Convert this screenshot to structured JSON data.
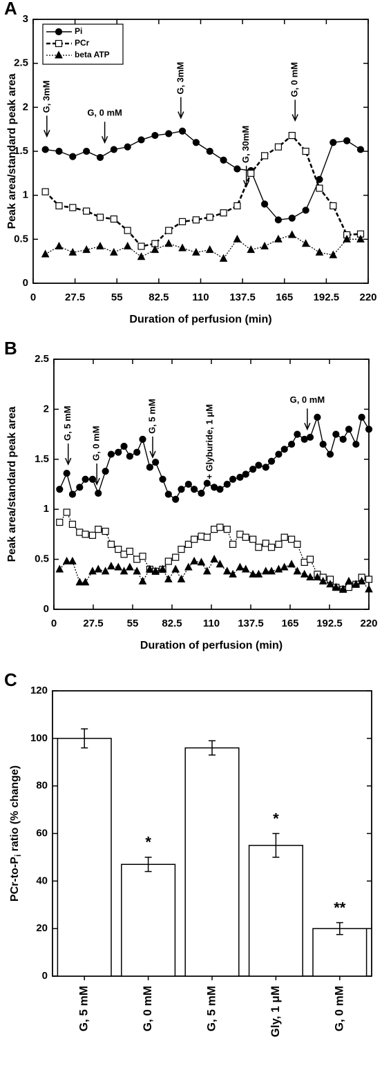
{
  "chart_data": [
    {
      "type": "line",
      "panel_label": "A",
      "xlabel": "Duration of perfusion (min)",
      "ylabel": "Peak area/standard peak area",
      "xlim": [
        0,
        220
      ],
      "xticks": [
        0,
        27.5,
        55,
        82.5,
        110,
        137.5,
        165,
        192.5,
        220
      ],
      "ylim": [
        0,
        3
      ],
      "yticks": [
        0,
        0.5,
        1,
        1.5,
        2,
        2.5,
        3
      ],
      "legend": "upper left",
      "x": [
        8,
        17,
        26,
        35,
        44,
        53,
        62,
        71,
        80,
        89,
        98,
        107,
        116,
        125,
        134,
        143,
        152,
        161,
        170,
        179,
        188,
        197,
        206,
        215
      ],
      "series": [
        {
          "name": "Pi",
          "color": "#000000",
          "marker": "circle",
          "filled": true,
          "linestyle": "solid",
          "values": [
            1.52,
            1.5,
            1.44,
            1.5,
            1.43,
            1.52,
            1.55,
            1.63,
            1.68,
            1.7,
            1.73,
            1.6,
            1.5,
            1.4,
            1.3,
            1.28,
            0.9,
            0.72,
            0.74,
            0.83,
            1.18,
            1.6,
            1.62,
            1.52
          ]
        },
        {
          "name": "PCr",
          "color": "#000000",
          "marker": "square",
          "filled": false,
          "linestyle": "dashed",
          "values": [
            1.04,
            0.88,
            0.86,
            0.82,
            0.75,
            0.73,
            0.6,
            0.42,
            0.45,
            0.6,
            0.7,
            0.72,
            0.75,
            0.8,
            0.88,
            1.25,
            1.45,
            1.55,
            1.68,
            1.5,
            1.08,
            0.88,
            0.55,
            0.56
          ]
        },
        {
          "name": "beta  ATP",
          "color": "#000000",
          "marker": "triangle",
          "filled": true,
          "linestyle": "dotted",
          "values": [
            0.33,
            0.42,
            0.35,
            0.38,
            0.42,
            0.35,
            0.42,
            0.3,
            0.38,
            0.45,
            0.4,
            0.35,
            0.38,
            0.28,
            0.5,
            0.38,
            0.42,
            0.5,
            0.55,
            0.45,
            0.35,
            0.32,
            0.5,
            0.5
          ]
        }
      ],
      "annotations": [
        {
          "text": "G, 3mM",
          "x": 9,
          "y": 1.67,
          "rotated": true,
          "arrow": true
        },
        {
          "text": "G, 0 mM",
          "x": 47,
          "y": 1.6,
          "rotated": false,
          "arrow": true
        },
        {
          "text": "G, 3mM",
          "x": 97,
          "y": 1.88,
          "rotated": true,
          "arrow": true
        },
        {
          "text": "G, 30mM",
          "x": 140,
          "y": 1.1,
          "rotated": true,
          "arrow": true
        },
        {
          "text": "G, 0 mM",
          "x": 172,
          "y": 1.85,
          "rotated": true,
          "arrow": true
        }
      ]
    },
    {
      "type": "line",
      "panel_label": "B",
      "xlabel": "Duration of perfusion (min)",
      "ylabel": "Peak area/standard peak area",
      "xlim": [
        0,
        220
      ],
      "xticks": [
        0,
        27.5,
        55,
        82.5,
        110,
        137.5,
        165,
        192.5,
        220
      ],
      "ylim": [
        0,
        2.5
      ],
      "yticks": [
        0,
        0.5,
        1,
        1.5,
        2,
        2.5
      ],
      "x": [
        4,
        9,
        13,
        18,
        22,
        27,
        31,
        36,
        40,
        45,
        49,
        53,
        58,
        62,
        67,
        71,
        76,
        80,
        85,
        89,
        94,
        98,
        103,
        107,
        112,
        116,
        121,
        125,
        130,
        134,
        139,
        143,
        148,
        152,
        157,
        161,
        166,
        170,
        175,
        179,
        184,
        188,
        193,
        197,
        202,
        206,
        211,
        215,
        220
      ],
      "series": [
        {
          "color": "#000000",
          "marker": "circle",
          "filled": true,
          "linestyle": "solid",
          "values": [
            1.2,
            1.36,
            1.15,
            1.22,
            1.3,
            1.3,
            1.16,
            1.38,
            1.55,
            1.57,
            1.63,
            1.53,
            1.57,
            1.7,
            1.42,
            1.47,
            1.3,
            1.15,
            1.1,
            1.2,
            1.25,
            1.2,
            1.16,
            1.26,
            1.22,
            1.2,
            1.25,
            1.3,
            1.32,
            1.35,
            1.4,
            1.44,
            1.42,
            1.48,
            1.55,
            1.6,
            1.65,
            1.75,
            1.7,
            1.72,
            1.92,
            1.65,
            1.55,
            1.75,
            1.7,
            1.8,
            1.65,
            1.92,
            1.8
          ]
        },
        {
          "color": "#000000",
          "marker": "square",
          "filled": false,
          "linestyle": "dotted",
          "values": [
            0.87,
            0.97,
            0.85,
            0.77,
            0.75,
            0.74,
            0.8,
            0.78,
            0.65,
            0.6,
            0.55,
            0.58,
            0.5,
            0.53,
            0.4,
            0.38,
            0.4,
            0.48,
            0.52,
            0.6,
            0.65,
            0.7,
            0.73,
            0.72,
            0.8,
            0.82,
            0.8,
            0.65,
            0.75,
            0.72,
            0.7,
            0.62,
            0.66,
            0.62,
            0.65,
            0.72,
            0.7,
            0.65,
            0.47,
            0.5,
            0.35,
            0.32,
            0.3,
            0.22,
            0.2,
            0.22,
            0.25,
            0.32,
            0.3
          ]
        },
        {
          "color": "#000000",
          "marker": "triangle",
          "filled": true,
          "linestyle": "dotted",
          "values": [
            0.4,
            0.48,
            0.48,
            0.27,
            0.27,
            0.38,
            0.4,
            0.38,
            0.43,
            0.42,
            0.38,
            0.42,
            0.38,
            0.28,
            0.4,
            0.38,
            0.4,
            0.3,
            0.4,
            0.3,
            0.42,
            0.48,
            0.47,
            0.38,
            0.5,
            0.45,
            0.38,
            0.35,
            0.42,
            0.4,
            0.35,
            0.35,
            0.38,
            0.38,
            0.4,
            0.42,
            0.45,
            0.38,
            0.35,
            0.32,
            0.32,
            0.28,
            0.25,
            0.22,
            0.2,
            0.28,
            0.25,
            0.28,
            0.2
          ]
        }
      ],
      "annotations": [
        {
          "text": "G, 5 mM",
          "x": 10,
          "y": 1.45,
          "rotated": true,
          "arrow": true
        },
        {
          "text": "G, 0 mM",
          "x": 30,
          "y": 1.25,
          "rotated": true,
          "arrow": true
        },
        {
          "text": "G, 5 mM",
          "x": 69,
          "y": 1.52,
          "rotated": true,
          "arrow": true
        },
        {
          "text": "+ Glyburide, 1 μM",
          "x": 109,
          "y": 1.3,
          "rotated": true,
          "arrow": false
        },
        {
          "text": "G, 0 mM",
          "x": 177,
          "y": 1.8,
          "rotated": false,
          "arrow": true
        }
      ]
    },
    {
      "type": "bar",
      "panel_label": "C",
      "ylabel": [
        "PCr-to-P",
        "i",
        " ratio (% change)"
      ],
      "categories": [
        "G, 5 mM",
        "G, 0 mM",
        "G, 5 mM",
        "Gly, 1 μM",
        "G, 0 mM"
      ],
      "values": [
        100,
        47,
        96,
        55,
        20
      ],
      "errors": [
        4,
        3,
        3,
        5,
        2.5
      ],
      "significance": [
        null,
        "*",
        null,
        "*",
        "**"
      ],
      "color": "#ffffff",
      "ylim": [
        0,
        120
      ],
      "yticks": [
        0,
        20,
        40,
        60,
        80,
        100,
        120
      ]
    }
  ]
}
